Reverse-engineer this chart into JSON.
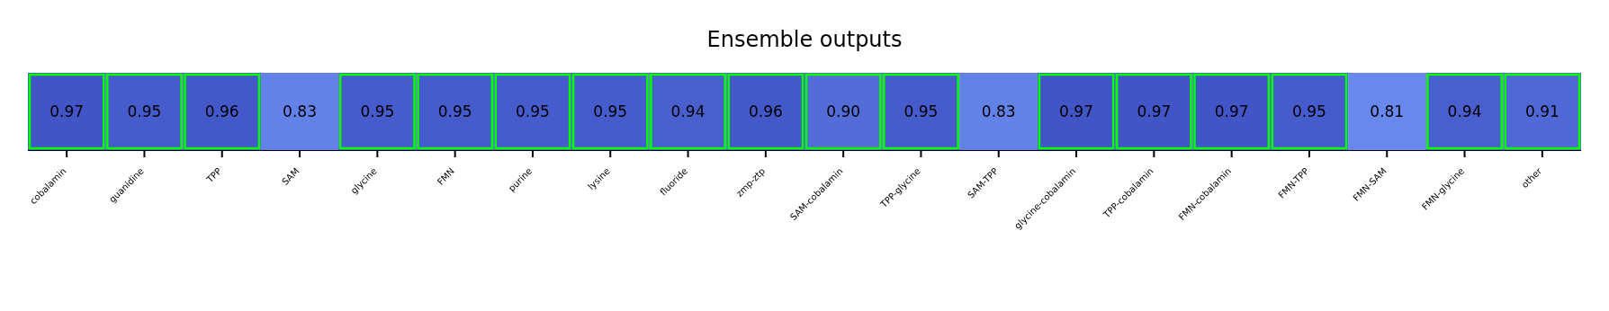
{
  "chart_data": {
    "type": "heatmap",
    "title": "Ensemble outputs",
    "categories": [
      "cobalamin",
      "guanidine",
      "TPP",
      "SAM",
      "glycine",
      "FMN",
      "purine",
      "lysine",
      "fluoride",
      "zmp-ztp",
      "SAM-cobalamin",
      "TPP-glycine",
      "SAM-TPP",
      "glycine-cobalamin",
      "TPP-cobalamin",
      "FMN-cobalamin",
      "FMN-TPP",
      "FMN-SAM",
      "FMN-glycine",
      "other"
    ],
    "y_categories": [
      null
    ],
    "cells": [
      [
        0.97,
        0.95,
        0.96,
        0.83,
        0.95,
        0.95,
        0.95,
        0.95,
        0.94,
        0.96,
        0.9,
        0.95,
        0.83,
        0.97,
        0.97,
        0.97,
        0.95,
        0.81,
        0.94,
        0.91
      ]
    ],
    "cell_labels": [
      [
        "0.97",
        "0.95",
        "0.96",
        "0.83",
        "0.95",
        "0.95",
        "0.95",
        "0.95",
        "0.94",
        "0.96",
        "0.90",
        "0.95",
        "0.83",
        "0.97",
        "0.97",
        "0.97",
        "0.95",
        "0.81",
        "0.94",
        "0.91"
      ]
    ]
  }
}
